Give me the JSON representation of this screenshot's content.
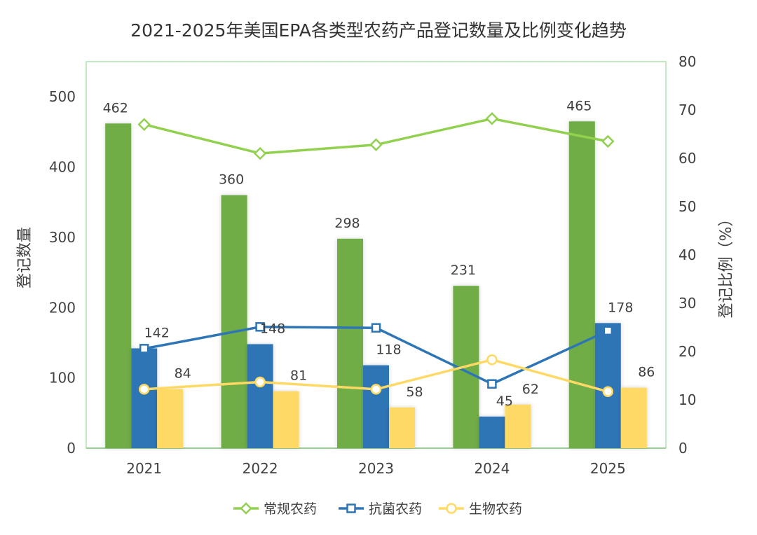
{
  "chart_data": {
    "type": "bar",
    "title": "2021-2025年美国EPA各类型农药产品登记数量及比例变化趋势",
    "xlabel": "",
    "ylabel": "登记数量",
    "y2label": "登记比例（%）",
    "categories": [
      "2021",
      "2022",
      "2023",
      "2024",
      "2025"
    ],
    "ylim": [
      0,
      550
    ],
    "yticks": [
      0,
      100,
      200,
      300,
      400,
      500
    ],
    "y2lim": [
      0,
      80
    ],
    "y2ticks": [
      0,
      10,
      20,
      30,
      40,
      50,
      60,
      70,
      80
    ],
    "grid": false,
    "legend_position": "bottom",
    "bar_series": [
      {
        "name": "常规农药",
        "color": "#70AD47",
        "values": [
          462,
          360,
          298,
          231,
          465
        ]
      },
      {
        "name": "抗菌农药",
        "color": "#2E75B6",
        "values": [
          142,
          148,
          118,
          45,
          178
        ]
      },
      {
        "name": "生物农药",
        "color": "#FFD966",
        "values": [
          84,
          81,
          58,
          62,
          86
        ]
      }
    ],
    "line_series": [
      {
        "name": "常规农药",
        "color": "#92D050",
        "marker": "diamond",
        "values": [
          67.0,
          61.0,
          62.8,
          68.2,
          63.5
        ]
      },
      {
        "name": "抗菌农药",
        "color": "#2E75B6",
        "marker": "square",
        "values": [
          20.6,
          25.1,
          24.9,
          13.3,
          24.3
        ]
      },
      {
        "name": "生物农药",
        "color": "#FFD966",
        "marker": "circle",
        "values": [
          12.2,
          13.7,
          12.2,
          18.3,
          11.7
        ]
      }
    ]
  }
}
